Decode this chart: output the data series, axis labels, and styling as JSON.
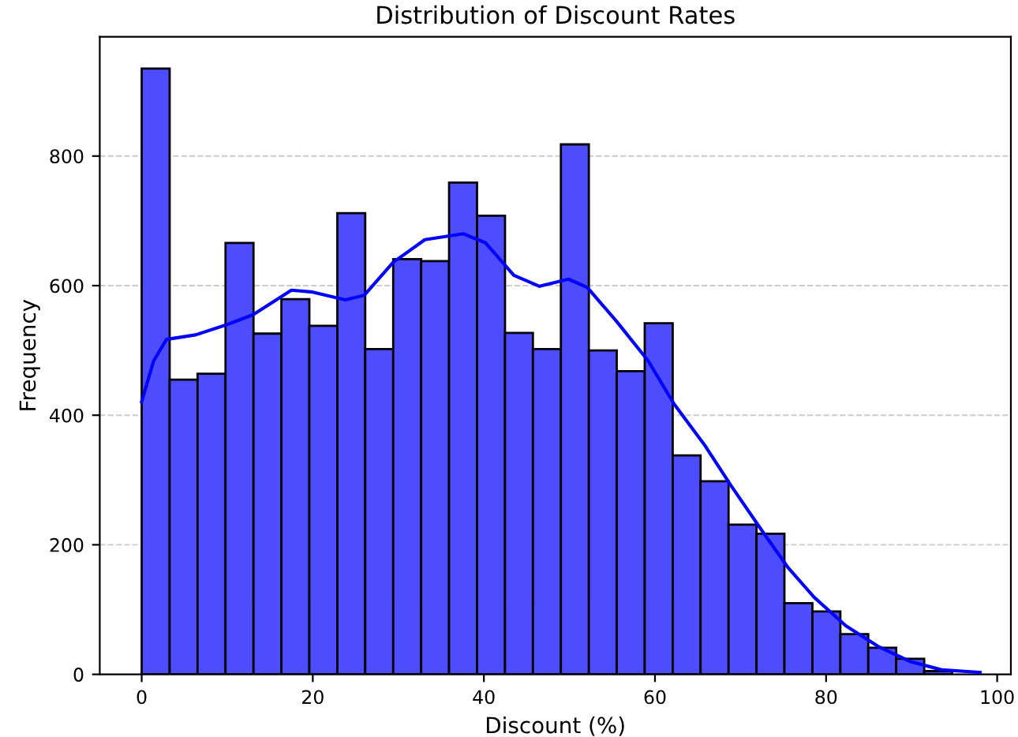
{
  "chart_data": {
    "type": "histogram",
    "title": "Distribution of Discount Rates",
    "xlabel": "Discount (%)",
    "ylabel": "Frequency",
    "xlim": [
      -4.9,
      101.6
    ],
    "ylim": [
      0,
      984
    ],
    "xticks": [
      0,
      20,
      40,
      60,
      80,
      100
    ],
    "yticks": [
      0,
      200,
      400,
      600,
      800
    ],
    "grid": "y",
    "series": [
      {
        "color": "#4d4dff",
        "bins": [
          0,
          3.27,
          6.53,
          9.8,
          13.07,
          16.33,
          19.6,
          22.87,
          26.13,
          29.4,
          32.67,
          35.93,
          39.2,
          42.47,
          45.73,
          49,
          52.27,
          55.53,
          58.8,
          62.07,
          65.33,
          68.6,
          71.87,
          75.13,
          78.4,
          81.67,
          84.93,
          88.2,
          91.47,
          94.73,
          98
        ],
        "values": [
          935,
          455,
          464,
          666,
          526,
          579,
          538,
          712,
          502,
          641,
          638,
          759,
          708,
          527,
          502,
          818,
          500,
          468,
          542,
          338,
          298,
          231,
          217,
          110,
          97,
          62,
          41,
          24,
          5,
          null
        ]
      },
      {
        "type": "line",
        "color": "#0000ff",
        "x": [
          0,
          1.4,
          2.9,
          6.3,
          10,
          13,
          17.5,
          20,
          23.8,
          26,
          29.4,
          33.1,
          37.6,
          40.2,
          43.5,
          46.5,
          49.9,
          52.1,
          55.5,
          59.2,
          62.2,
          65.9,
          68.9,
          72.6,
          75.6,
          78.6,
          82.3,
          86.1,
          89.8,
          93.5,
          98
        ],
        "values": [
          421,
          484,
          517,
          524,
          540,
          555,
          593,
          590,
          578,
          585,
          636,
          671,
          680,
          666,
          616,
          599,
          610,
          597,
          545,
          484,
          418,
          352,
          291,
          220,
          164,
          119,
          75,
          43,
          20,
          7,
          3
        ]
      }
    ]
  }
}
